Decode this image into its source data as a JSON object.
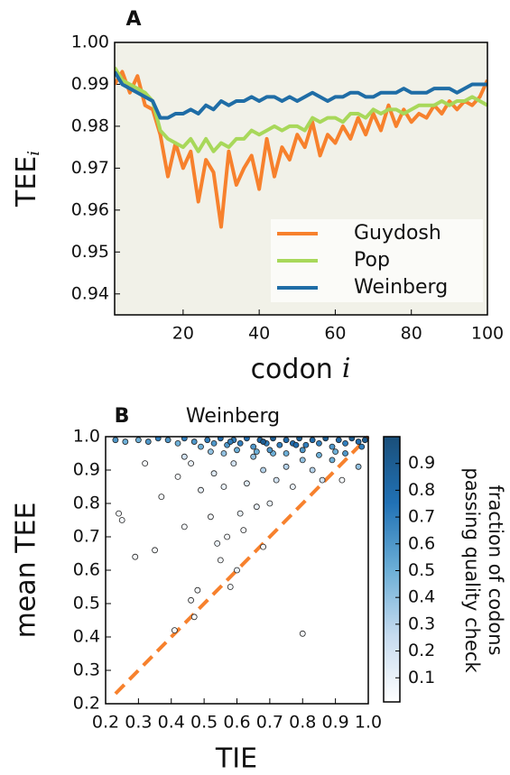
{
  "chart_data": [
    {
      "type": "line",
      "title": "A",
      "xlabel": "codon",
      "xlabel_var": "i",
      "ylabel": "TEE",
      "ylabel_sub": "i",
      "xlim": [
        2,
        100
      ],
      "ylim": [
        0.935,
        1.0
      ],
      "xticks": [
        20,
        40,
        60,
        80,
        100
      ],
      "yticks": [
        0.94,
        0.95,
        0.96,
        0.97,
        0.98,
        0.99,
        {
          "value": 1.0,
          "label": "1.00"
        }
      ],
      "legend": "lower right",
      "x": [
        2,
        4,
        6,
        8,
        10,
        12,
        14,
        16,
        18,
        20,
        22,
        24,
        26,
        28,
        30,
        32,
        34,
        36,
        38,
        40,
        42,
        44,
        46,
        48,
        50,
        52,
        54,
        56,
        58,
        60,
        62,
        64,
        66,
        68,
        70,
        72,
        74,
        76,
        78,
        80,
        82,
        84,
        86,
        88,
        90,
        92,
        94,
        96,
        98,
        100
      ],
      "series": [
        {
          "name": "Guydosh",
          "color": "#f7812d",
          "values": [
            0.99,
            0.993,
            0.988,
            0.992,
            0.985,
            0.984,
            0.978,
            0.968,
            0.976,
            0.97,
            0.974,
            0.962,
            0.972,
            0.969,
            0.956,
            0.974,
            0.966,
            0.97,
            0.973,
            0.965,
            0.977,
            0.968,
            0.975,
            0.972,
            0.978,
            0.975,
            0.981,
            0.973,
            0.978,
            0.976,
            0.98,
            0.977,
            0.982,
            0.978,
            0.983,
            0.979,
            0.985,
            0.98,
            0.984,
            0.981,
            0.983,
            0.982,
            0.985,
            0.983,
            0.986,
            0.984,
            0.986,
            0.985,
            0.987,
            0.991
          ]
        },
        {
          "name": "Pop",
          "color": "#a8d85a",
          "values": [
            0.994,
            0.991,
            0.99,
            0.989,
            0.988,
            0.986,
            0.979,
            0.977,
            0.976,
            0.975,
            0.977,
            0.974,
            0.977,
            0.974,
            0.976,
            0.975,
            0.977,
            0.977,
            0.979,
            0.978,
            0.979,
            0.98,
            0.979,
            0.98,
            0.98,
            0.979,
            0.982,
            0.981,
            0.982,
            0.982,
            0.981,
            0.983,
            0.983,
            0.982,
            0.984,
            0.983,
            0.984,
            0.984,
            0.983,
            0.984,
            0.985,
            0.985,
            0.985,
            0.986,
            0.985,
            0.986,
            0.986,
            0.987,
            0.986,
            0.985
          ]
        },
        {
          "name": "Weinberg",
          "color": "#1f6da6",
          "values": [
            0.993,
            0.99,
            0.989,
            0.988,
            0.987,
            0.986,
            0.982,
            0.982,
            0.983,
            0.983,
            0.984,
            0.983,
            0.985,
            0.984,
            0.986,
            0.985,
            0.986,
            0.986,
            0.987,
            0.986,
            0.987,
            0.987,
            0.986,
            0.987,
            0.986,
            0.987,
            0.988,
            0.987,
            0.986,
            0.987,
            0.987,
            0.988,
            0.988,
            0.987,
            0.987,
            0.988,
            0.988,
            0.988,
            0.989,
            0.988,
            0.988,
            0.988,
            0.989,
            0.989,
            0.989,
            0.988,
            0.989,
            0.99,
            0.99,
            0.99
          ]
        }
      ]
    },
    {
      "type": "scatter",
      "panel": "B",
      "title": "Weinberg",
      "xlabel": "TIE",
      "ylabel": "mean TEE",
      "xlim": [
        0.2,
        1.0
      ],
      "ylim": [
        0.2,
        1.0
      ],
      "xticks": [
        0.2,
        0.3,
        0.4,
        0.5,
        0.6,
        0.7,
        0.8,
        0.9,
        {
          "value": 1.0,
          "label": "1.0"
        }
      ],
      "yticks": [
        0.2,
        0.3,
        0.4,
        0.5,
        0.6,
        0.7,
        0.8,
        0.9,
        {
          "value": 1.0,
          "label": "1.0"
        }
      ],
      "colorbar_label": [
        "fraction of codons",
        "passing quality check"
      ],
      "clim": [
        0.01,
        1.0
      ],
      "cticks": [
        0.1,
        0.2,
        0.3,
        0.4,
        0.5,
        0.6,
        0.7,
        0.8,
        0.9
      ],
      "cmap": [
        "#ffffff",
        "#c6dbef",
        "#6baed6",
        "#2171b5",
        "#1a4f7a"
      ],
      "reference_line": {
        "x": [
          0.23,
          1.0
        ],
        "y": [
          0.23,
          1.0
        ],
        "color": "#f7812d"
      },
      "series": [
        {
          "x": [
            0.24,
            0.25,
            0.29,
            0.35,
            0.41,
            0.46,
            0.48,
            0.47,
            0.8,
            0.68,
            0.58,
            0.6,
            0.55,
            0.54,
            0.57,
            0.62,
            0.44,
            0.52,
            0.61,
            0.66,
            0.7,
            0.37,
            0.49,
            0.56,
            0.63,
            0.72,
            0.77,
            0.86,
            0.92,
            0.42,
            0.53,
            0.68,
            0.75,
            0.83,
            0.32,
            0.46,
            0.59,
            0.8,
            0.89,
            0.97,
            0.44,
            0.56,
            0.65,
            0.71,
            0.93,
            0.98,
            0.23,
            0.26,
            0.3,
            0.33,
            0.36,
            0.39,
            0.42,
            0.44,
            0.47,
            0.49,
            0.51,
            0.53,
            0.55,
            0.57,
            0.59,
            0.61,
            0.63,
            0.65,
            0.67,
            0.69,
            0.71,
            0.73,
            0.75,
            0.77,
            0.79,
            0.81,
            0.83,
            0.85,
            0.87,
            0.89,
            0.91,
            0.93,
            0.95,
            0.97,
            0.99,
            0.6,
            0.7,
            0.8,
            0.9,
            0.75,
            0.85,
            0.52,
            0.66,
            0.78,
            0.68,
            0.58
          ],
          "y": [
            0.77,
            0.75,
            0.64,
            0.66,
            0.42,
            0.51,
            0.54,
            0.46,
            0.41,
            0.67,
            0.55,
            0.6,
            0.63,
            0.68,
            0.7,
            0.72,
            0.73,
            0.76,
            0.77,
            0.79,
            0.8,
            0.82,
            0.84,
            0.85,
            0.86,
            0.87,
            0.85,
            0.87,
            0.87,
            0.88,
            0.89,
            0.9,
            0.91,
            0.9,
            0.92,
            0.92,
            0.92,
            0.93,
            0.93,
            0.91,
            0.94,
            0.95,
            0.94,
            0.95,
            0.95,
            0.97,
            0.99,
            0.985,
            0.99,
            0.985,
            0.995,
            0.99,
            0.98,
            0.995,
            0.985,
            0.97,
            0.99,
            0.98,
            0.995,
            0.975,
            0.99,
            0.98,
            0.995,
            0.97,
            0.99,
            0.98,
            0.995,
            0.975,
            0.99,
            0.98,
            0.995,
            0.975,
            0.99,
            0.98,
            0.995,
            0.97,
            0.99,
            0.98,
            0.995,
            0.985,
            0.99,
            0.96,
            0.96,
            0.96,
            0.955,
            0.95,
            0.945,
            0.955,
            0.955,
            0.975,
            0.985,
            0.985
          ],
          "c": [
            0.05,
            0.05,
            0.05,
            0.05,
            0.05,
            0.05,
            0.05,
            0.05,
            0.05,
            0.05,
            0.05,
            0.1,
            0.05,
            0.1,
            0.05,
            0.05,
            0.05,
            0.05,
            0.1,
            0.1,
            0.1,
            0.05,
            0.1,
            0.1,
            0.15,
            0.2,
            0.1,
            0.2,
            0.05,
            0.05,
            0.15,
            0.3,
            0.3,
            0.3,
            0.05,
            0.1,
            0.2,
            0.4,
            0.5,
            0.4,
            0.2,
            0.4,
            0.4,
            0.5,
            0.6,
            0.7,
            0.6,
            0.5,
            0.5,
            0.6,
            0.7,
            0.6,
            0.5,
            0.7,
            0.6,
            0.5,
            0.7,
            0.6,
            0.8,
            0.6,
            0.7,
            0.7,
            0.8,
            0.6,
            0.8,
            0.7,
            0.9,
            0.7,
            0.8,
            0.8,
            0.9,
            0.7,
            0.8,
            0.7,
            0.9,
            0.6,
            0.8,
            0.7,
            0.9,
            0.8,
            0.9,
            0.5,
            0.6,
            0.6,
            0.5,
            0.5,
            0.5,
            0.4,
            0.5,
            0.8,
            0.9,
            0.7
          ]
        }
      ]
    }
  ]
}
